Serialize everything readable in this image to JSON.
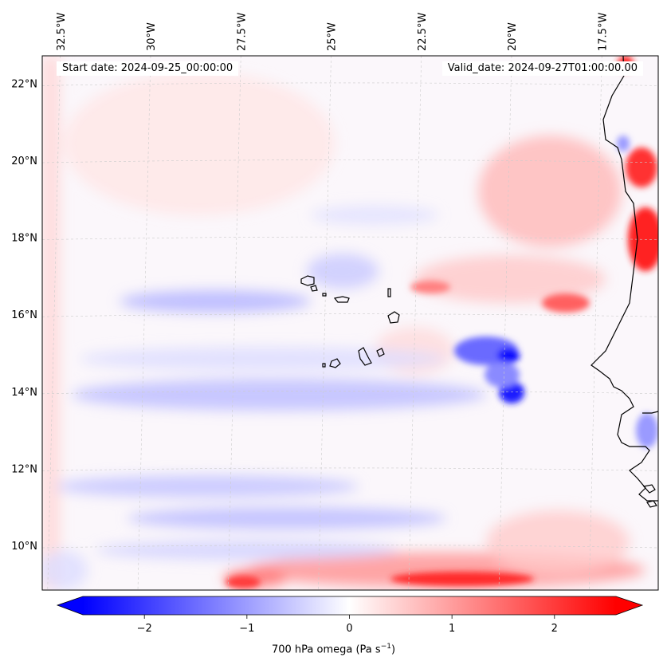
{
  "map": {
    "start_date": "Start date: 2024-09-25_00:00:00",
    "valid_date": "Valid_date: 2024-09-27T01:00:00.00",
    "lon_labels": [
      "32.5°W",
      "30°W",
      "27.5°W",
      "25°W",
      "22.5°W",
      "20°W",
      "17.5°W"
    ],
    "lat_labels": [
      "22°N",
      "20°N",
      "18°N",
      "16°N",
      "14°N",
      "12°N",
      "10°N"
    ],
    "lon_values": [
      -32.5,
      -30,
      -27.5,
      -25,
      -22.5,
      -20,
      -17.5
    ],
    "lat_values": [
      22,
      20,
      18,
      16,
      14,
      12,
      10
    ],
    "variable": "700 hPa omega",
    "units": "Pa s",
    "units_exponent": "−1",
    "colormap": "bwr",
    "colors": {
      "neg": "#0000ff",
      "zero": "#ffffff",
      "pos": "#ff0000",
      "coast": "#000000",
      "grid": "#cccccc"
    }
  },
  "colorbar": {
    "ticks": [
      "−2",
      "−1",
      "0",
      "1",
      "2"
    ],
    "tick_values": [
      -2,
      -1,
      0,
      1,
      2
    ],
    "range": [
      -2.6,
      2.6
    ],
    "extend": "both"
  }
}
